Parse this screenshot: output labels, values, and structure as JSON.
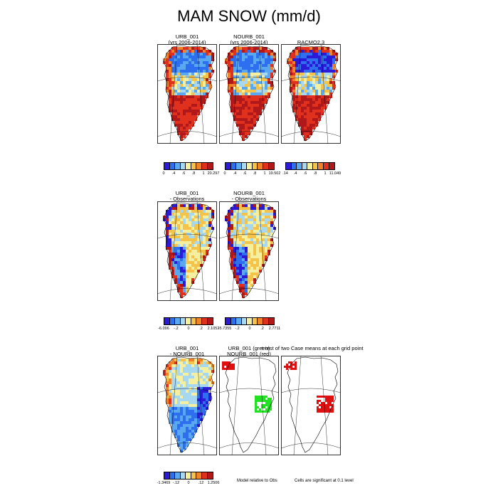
{
  "page": {
    "title": "MAM SNOW (mm/d)"
  },
  "palettes": {
    "abs": [
      "#2b1bd6",
      "#2e6ff0",
      "#5aa8f0",
      "#a8d8f0",
      "#f5f0a0",
      "#f5c24a",
      "#f0822a",
      "#e0301e",
      "#b0181a"
    ],
    "diff": [
      "#2b1bd6",
      "#2e6ff0",
      "#5aa8f0",
      "#a8d8f0",
      "#f5f0a0",
      "#f5c24a",
      "#f0822a",
      "#e0301e",
      "#b0181a"
    ],
    "sig_red": "#e01010",
    "sig_green": "#22e022"
  },
  "chart_data": [
    {
      "type": "heatmap",
      "panel": "urb-abs",
      "title_lines": [
        "URB_001",
        "(yrs 2006-2014)"
      ],
      "colorbar": {
        "labels": [
          "0",
          ".4",
          ".6",
          ".8",
          "1",
          "20.297"
        ]
      }
    },
    {
      "type": "heatmap",
      "panel": "nourb-abs",
      "title_lines": [
        "NOURB_001",
        "(yrs 2006-2014)"
      ],
      "colorbar": {
        "labels": [
          "0",
          ".4",
          ".6",
          ".8",
          "1",
          "19.502"
        ]
      }
    },
    {
      "type": "heatmap",
      "panel": "racmo",
      "title_lines": [
        "RACMO2.3"
      ],
      "colorbar": {
        "labels": [
          ".14",
          ".4",
          ".6",
          ".8",
          "1",
          "11.049"
        ]
      }
    },
    {
      "type": "heatmap",
      "panel": "urb-obs",
      "title_lines": [
        "URB_001",
        "- Observations"
      ],
      "colorbar": {
        "labels": [
          "-6.096",
          "-.2",
          "0",
          ".2",
          "2.1052"
        ]
      }
    },
    {
      "type": "heatmap",
      "panel": "nourb-obs",
      "title_lines": [
        "NOURB_001",
        "- Observations"
      ],
      "colorbar": {
        "labels": [
          "-5.7355",
          "-.2",
          "0",
          ".2",
          "2.7711"
        ]
      }
    },
    {
      "type": "heatmap",
      "panel": "urb-nourb",
      "title_lines": [
        "URB_001",
        "- NOURB_001"
      ],
      "colorbar": {
        "labels": [
          "-1.3469",
          "-.12",
          "0",
          ".12",
          "1.2506"
        ]
      }
    },
    {
      "type": "heatmap",
      "panel": "sig-urb-nourb",
      "title_lines": [
        "URB_001 (green)",
        "NOURB_001 (red)"
      ],
      "note": "Model relative to Obs"
    },
    {
      "type": "heatmap",
      "panel": "sig-test",
      "title_lines": [
        "t-test of two Case means at each grid point"
      ],
      "note": "Cells are significant at 0.1 level"
    }
  ]
}
